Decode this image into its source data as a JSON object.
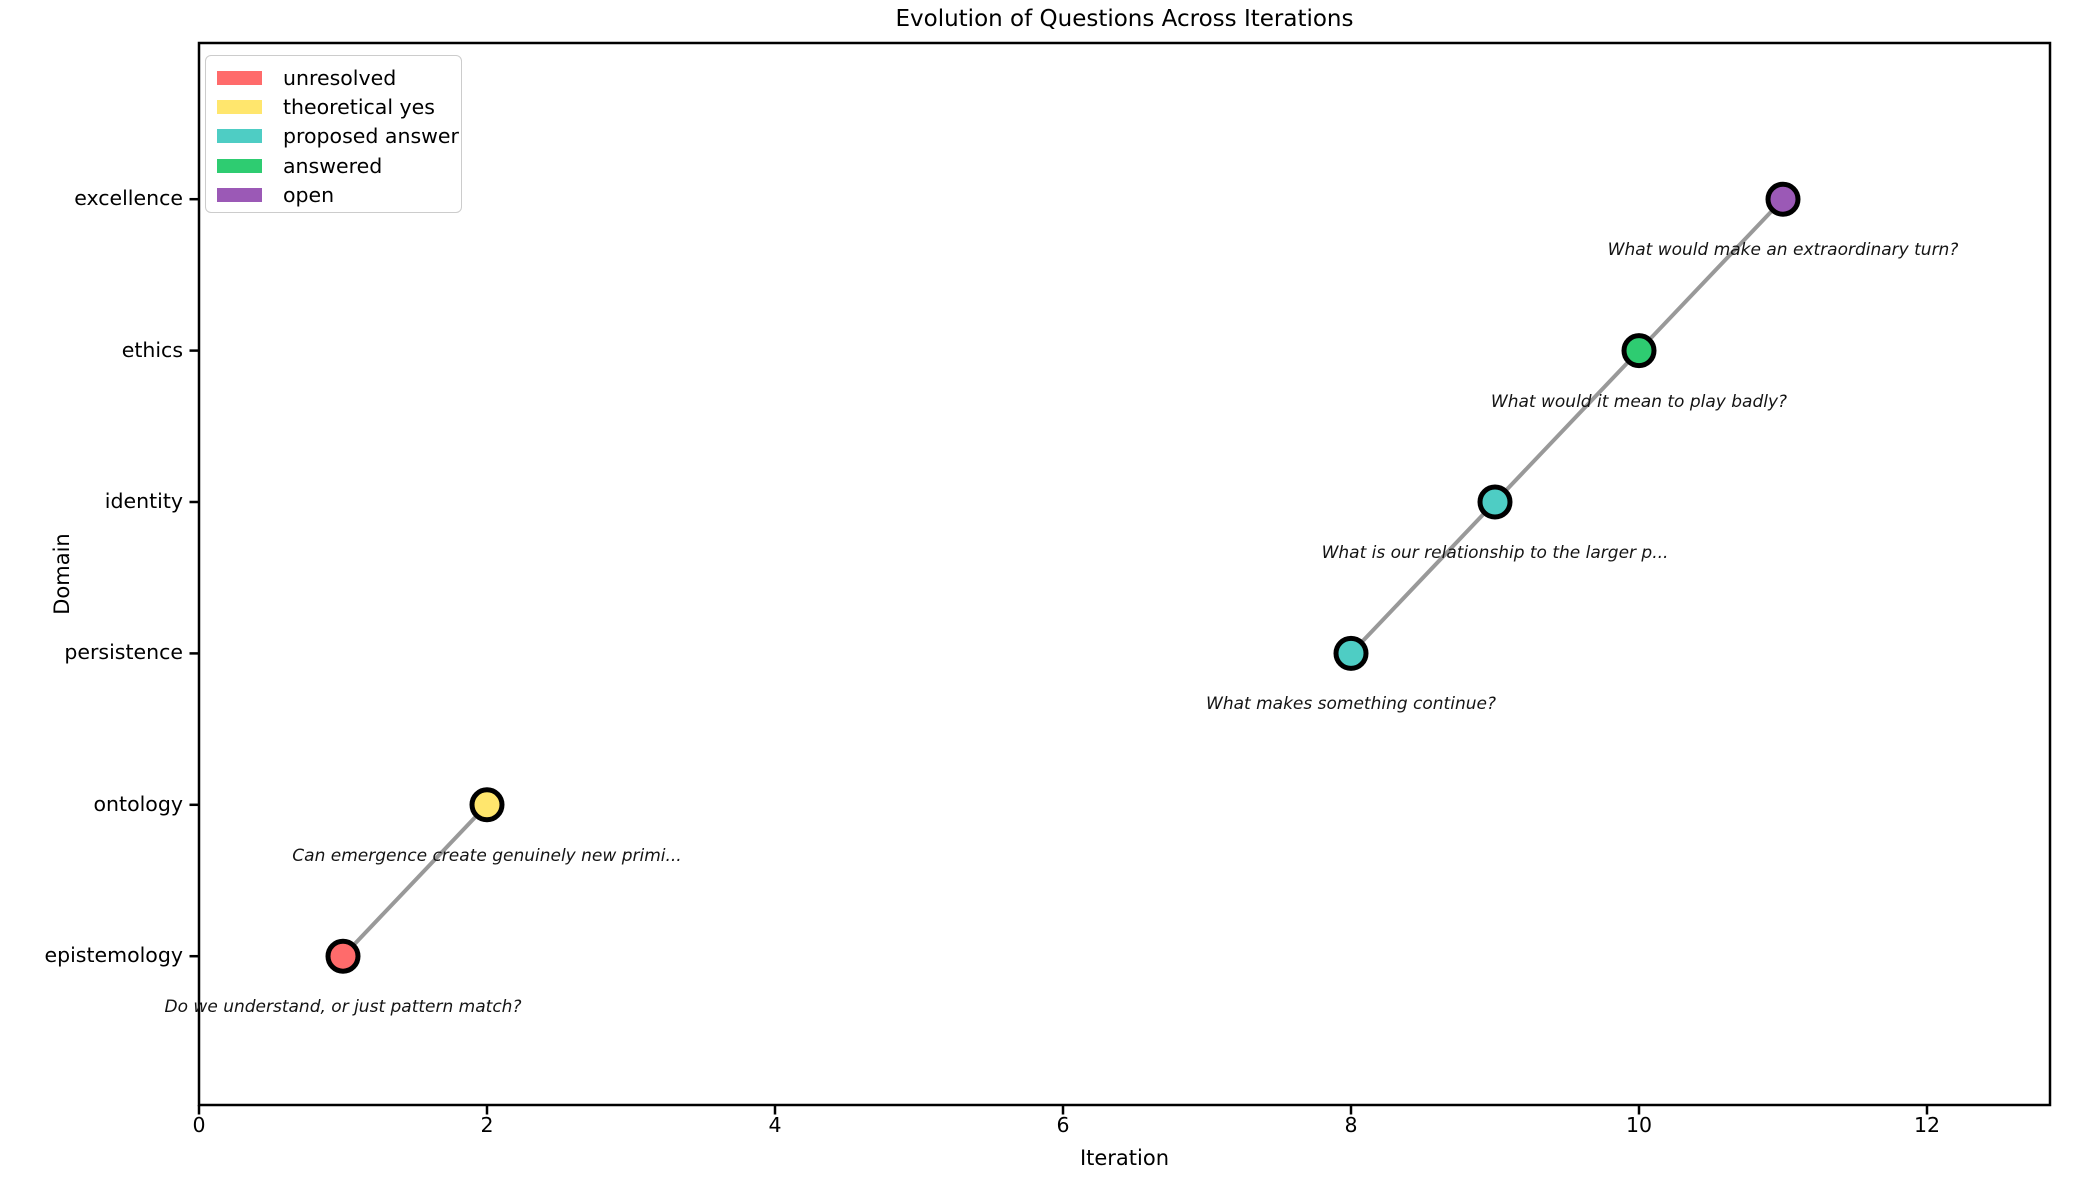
{
  "figure": {
    "title": "Evolution of Questions Across Iterations"
  },
  "chart_data": {
    "type": "scatter",
    "title": "Evolution of Questions Across Iterations",
    "xlabel": "Iteration",
    "ylabel": "Domain",
    "xlim": [
      0,
      12.85
    ],
    "x_ticks": [
      0,
      2,
      4,
      6,
      8,
      10,
      12
    ],
    "categories_bottom_to_top": [
      "epistemology",
      "ontology",
      "persistence",
      "identity",
      "ethics",
      "excellence"
    ],
    "grid": false,
    "legend_position": "upper left",
    "legend": [
      {
        "label": "unresolved",
        "color": "#FF6B6B"
      },
      {
        "label": "theoretical yes",
        "color": "#FFE66D"
      },
      {
        "label": "proposed answer",
        "color": "#4ECDC4"
      },
      {
        "label": "answered",
        "color": "#2ECC71"
      },
      {
        "label": "open",
        "color": "#9B59B6"
      }
    ],
    "marker_edge_color": "#000000",
    "line_color": "#999999",
    "points": [
      {
        "iteration": 1,
        "domain": "epistemology",
        "status": "unresolved",
        "annotation": "Do we understand, or just pattern match?"
      },
      {
        "iteration": 2,
        "domain": "ontology",
        "status": "theoretical yes",
        "annotation": "Can emergence create genuinely new primi..."
      },
      {
        "iteration": 8,
        "domain": "persistence",
        "status": "proposed answer",
        "annotation": "What makes something continue?"
      },
      {
        "iteration": 9,
        "domain": "identity",
        "status": "proposed answer",
        "annotation": "What is our relationship to the larger p..."
      },
      {
        "iteration": 10,
        "domain": "ethics",
        "status": "answered",
        "annotation": "What would it mean to play badly?"
      },
      {
        "iteration": 11,
        "domain": "excellence",
        "status": "open",
        "annotation": "What would make an extraordinary turn?"
      }
    ],
    "line_segments": [
      [
        0,
        1
      ],
      [
        2,
        3,
        4,
        5
      ]
    ]
  }
}
